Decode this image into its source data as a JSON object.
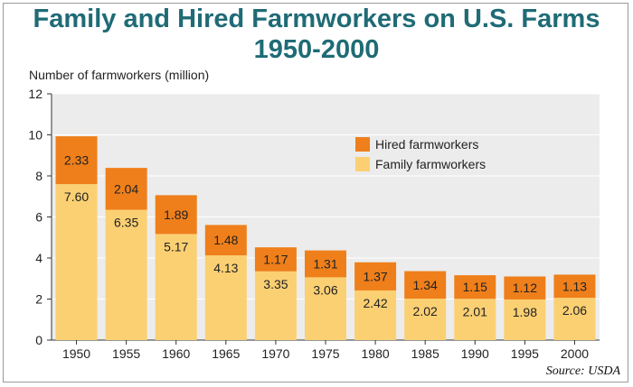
{
  "chart_data": {
    "type": "bar",
    "stacked": true,
    "title": "Family and Hired Farmworkers on U.S. Farms",
    "subtitle": "1950-2000",
    "ylabel": "Number of farmworkers (million)",
    "xlabel": "",
    "ylim": [
      0,
      12
    ],
    "yticks": [
      0,
      2,
      4,
      6,
      8,
      10,
      12
    ],
    "grid": true,
    "legend_position": "top-right",
    "categories": [
      "1950",
      "1955",
      "1960",
      "1965",
      "1970",
      "1975",
      "1980",
      "1985",
      "1990",
      "1995",
      "2000"
    ],
    "series": [
      {
        "name": "Family farmworkers",
        "color": "#fbd073",
        "values": [
          7.6,
          6.35,
          5.17,
          4.13,
          3.35,
          3.06,
          2.42,
          2.02,
          2.01,
          1.98,
          2.06
        ],
        "labels": [
          "7.60",
          "6.35",
          "5.17",
          "4.13",
          "3.35",
          "3.06",
          "2.42",
          "2.02",
          "2.01",
          "1.98",
          "2.06"
        ]
      },
      {
        "name": "Hired farmworkers",
        "color": "#ef7f1a",
        "values": [
          2.33,
          2.04,
          1.89,
          1.48,
          1.17,
          1.31,
          1.37,
          1.34,
          1.15,
          1.12,
          1.13
        ],
        "labels": [
          "2.33",
          "2.04",
          "1.89",
          "1.48",
          "1.17",
          "1.31",
          "1.37",
          "1.34",
          "1.15",
          "1.12",
          "1.13"
        ]
      }
    ],
    "legend_order": [
      "Hired farmworkers",
      "Family farmworkers"
    ],
    "source": "Source: USDA"
  }
}
